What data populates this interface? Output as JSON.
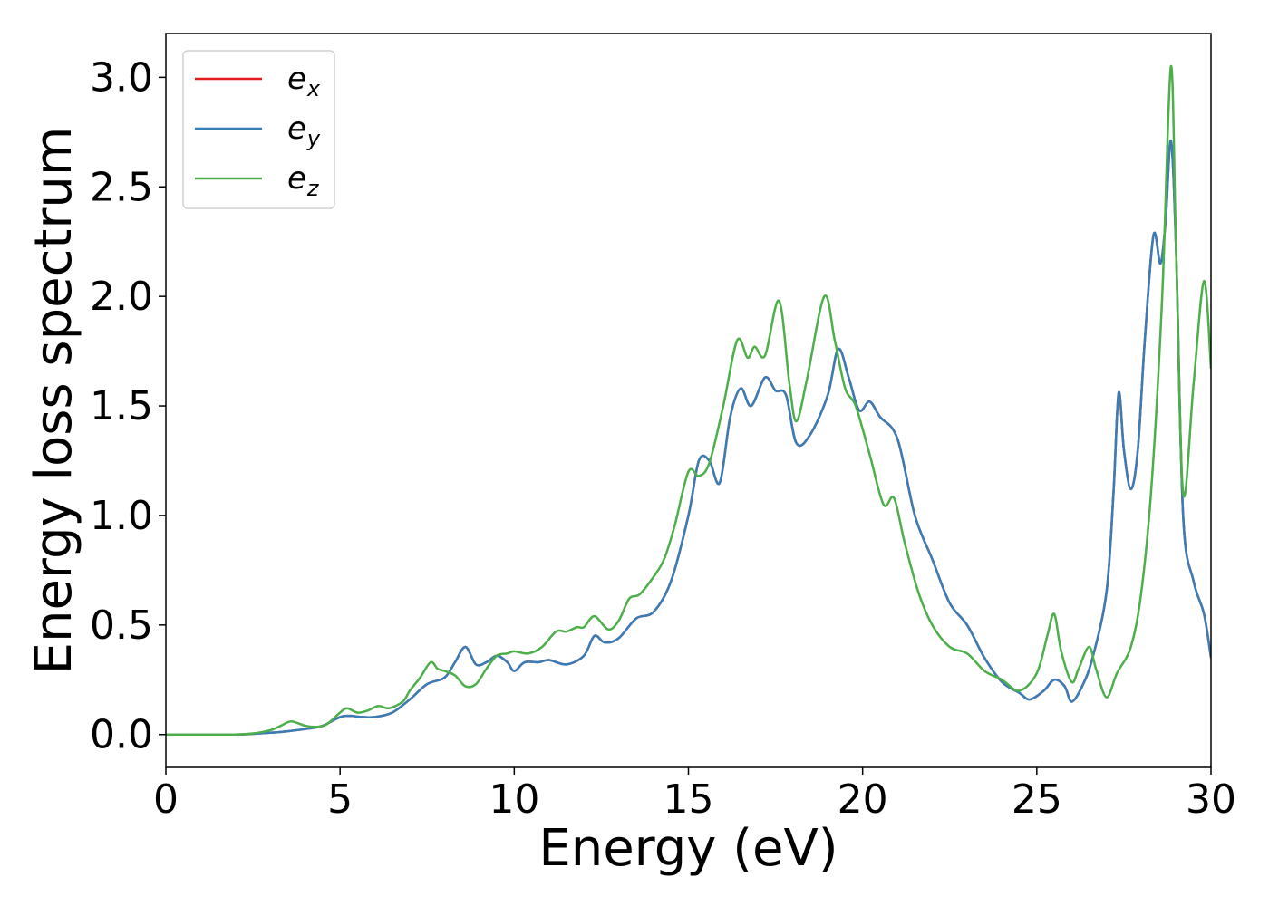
{
  "chart_data": {
    "type": "line",
    "xlabel": "Energy (eV)",
    "ylabel": "Energy loss spectrum",
    "xlim": [
      0,
      30
    ],
    "ylim": [
      -0.15,
      3.2
    ],
    "xticks": [
      "0",
      "5",
      "10",
      "15",
      "20",
      "25",
      "30"
    ],
    "yticks": [
      "0.0",
      "0.5",
      "1.0",
      "1.5",
      "2.0",
      "2.5",
      "3.0"
    ],
    "grid": false,
    "legend_position": "top-left",
    "series": [
      {
        "name": "e_x",
        "label_base": "e",
        "label_sub": "x",
        "color": "#e41a1c",
        "x": [
          0,
          1,
          2,
          2.5,
          3,
          3.5,
          4,
          4.5,
          5,
          5.3,
          5.6,
          6,
          6.5,
          7,
          7.5,
          8,
          8.3,
          8.6,
          8.9,
          9.2,
          9.5,
          9.8,
          10,
          10.3,
          10.7,
          11,
          11.5,
          12,
          12.3,
          12.6,
          13,
          13.5,
          14,
          14.5,
          15,
          15.3,
          15.6,
          15.9,
          16.2,
          16.5,
          16.8,
          17.2,
          17.5,
          17.8,
          18.1,
          18.5,
          19,
          19.3,
          19.6,
          19.9,
          20.2,
          20.5,
          21,
          21.5,
          22,
          22.5,
          23,
          23.5,
          24,
          24.5,
          24.8,
          25.2,
          25.5,
          25.8,
          26,
          26.3,
          26.6,
          27,
          27.2,
          27.35,
          27.5,
          27.7,
          27.9,
          28.1,
          28.35,
          28.55,
          28.7,
          28.85,
          29,
          29.2,
          29.5,
          29.8,
          30
        ],
        "y": [
          0,
          0,
          0,
          0.003,
          0.008,
          0.015,
          0.025,
          0.04,
          0.08,
          0.085,
          0.08,
          0.08,
          0.1,
          0.16,
          0.23,
          0.26,
          0.33,
          0.4,
          0.32,
          0.33,
          0.36,
          0.33,
          0.29,
          0.33,
          0.33,
          0.34,
          0.32,
          0.36,
          0.45,
          0.42,
          0.44,
          0.53,
          0.56,
          0.7,
          1.0,
          1.25,
          1.25,
          1.15,
          1.45,
          1.58,
          1.5,
          1.63,
          1.57,
          1.55,
          1.33,
          1.37,
          1.55,
          1.76,
          1.63,
          1.48,
          1.52,
          1.45,
          1.35,
          1.0,
          0.8,
          0.6,
          0.5,
          0.35,
          0.24,
          0.19,
          0.16,
          0.2,
          0.25,
          0.22,
          0.15,
          0.22,
          0.35,
          0.65,
          1.1,
          1.56,
          1.3,
          1.12,
          1.3,
          1.8,
          2.28,
          2.15,
          2.35,
          2.71,
          2.2,
          1.0,
          0.7,
          0.55,
          0.35
        ]
      },
      {
        "name": "e_y",
        "label_base": "e",
        "label_sub": "y",
        "color": "#377eb8",
        "x": [
          0,
          1,
          2,
          2.5,
          3,
          3.5,
          4,
          4.5,
          5,
          5.3,
          5.6,
          6,
          6.5,
          7,
          7.5,
          8,
          8.3,
          8.6,
          8.9,
          9.2,
          9.5,
          9.8,
          10,
          10.3,
          10.7,
          11,
          11.5,
          12,
          12.3,
          12.6,
          13,
          13.5,
          14,
          14.5,
          15,
          15.3,
          15.6,
          15.9,
          16.2,
          16.5,
          16.8,
          17.2,
          17.5,
          17.8,
          18.1,
          18.5,
          19,
          19.3,
          19.6,
          19.9,
          20.2,
          20.5,
          21,
          21.5,
          22,
          22.5,
          23,
          23.5,
          24,
          24.5,
          24.8,
          25.2,
          25.5,
          25.8,
          26,
          26.3,
          26.6,
          27,
          27.2,
          27.35,
          27.5,
          27.7,
          27.9,
          28.1,
          28.35,
          28.55,
          28.7,
          28.85,
          29,
          29.2,
          29.5,
          29.8,
          30
        ],
        "y": [
          0,
          0,
          0,
          0.003,
          0.008,
          0.015,
          0.025,
          0.04,
          0.08,
          0.085,
          0.08,
          0.08,
          0.1,
          0.16,
          0.23,
          0.26,
          0.33,
          0.4,
          0.32,
          0.33,
          0.36,
          0.33,
          0.29,
          0.33,
          0.33,
          0.34,
          0.32,
          0.36,
          0.45,
          0.42,
          0.44,
          0.53,
          0.56,
          0.7,
          1.0,
          1.25,
          1.25,
          1.15,
          1.45,
          1.58,
          1.5,
          1.63,
          1.57,
          1.55,
          1.33,
          1.37,
          1.55,
          1.76,
          1.63,
          1.48,
          1.52,
          1.45,
          1.35,
          1.0,
          0.8,
          0.6,
          0.5,
          0.35,
          0.24,
          0.19,
          0.16,
          0.2,
          0.25,
          0.22,
          0.15,
          0.22,
          0.35,
          0.65,
          1.1,
          1.56,
          1.3,
          1.12,
          1.3,
          1.8,
          2.28,
          2.15,
          2.35,
          2.71,
          2.2,
          1.0,
          0.7,
          0.55,
          0.35
        ]
      },
      {
        "name": "e_z",
        "label_base": "e",
        "label_sub": "z",
        "color": "#4daf4a",
        "x": [
          0,
          1,
          2,
          2.5,
          3,
          3.3,
          3.6,
          4,
          4.3,
          4.6,
          5,
          5.2,
          5.5,
          5.8,
          6.1,
          6.4,
          6.8,
          7,
          7.3,
          7.6,
          7.8,
          8,
          8.3,
          8.6,
          8.9,
          9.2,
          9.5,
          9.8,
          10,
          10.4,
          10.8,
          11.2,
          11.5,
          11.8,
          12,
          12.3,
          12.7,
          13,
          13.3,
          13.6,
          14,
          14.3,
          14.6,
          15,
          15.3,
          15.6,
          16,
          16.4,
          16.7,
          16.9,
          17.2,
          17.6,
          17.9,
          18.1,
          18.4,
          18.9,
          19.2,
          19.5,
          19.8,
          20.2,
          20.6,
          20.9,
          21.2,
          21.6,
          22,
          22.5,
          23,
          23.5,
          24,
          24.5,
          25,
          25.3,
          25.5,
          25.7,
          26,
          26.2,
          26.5,
          26.7,
          27,
          27.3,
          27.7,
          28,
          28.3,
          28.6,
          28.85,
          29,
          29.2,
          29.5,
          29.8,
          30
        ],
        "y": [
          0,
          0,
          0,
          0.005,
          0.02,
          0.04,
          0.06,
          0.04,
          0.035,
          0.045,
          0.1,
          0.12,
          0.1,
          0.11,
          0.13,
          0.12,
          0.15,
          0.2,
          0.26,
          0.33,
          0.3,
          0.29,
          0.27,
          0.22,
          0.23,
          0.3,
          0.36,
          0.37,
          0.38,
          0.37,
          0.4,
          0.47,
          0.47,
          0.49,
          0.49,
          0.54,
          0.48,
          0.52,
          0.62,
          0.64,
          0.72,
          0.8,
          0.95,
          1.2,
          1.18,
          1.24,
          1.5,
          1.8,
          1.72,
          1.77,
          1.73,
          1.98,
          1.6,
          1.43,
          1.62,
          2.0,
          1.8,
          1.58,
          1.5,
          1.28,
          1.05,
          1.08,
          0.88,
          0.65,
          0.5,
          0.4,
          0.37,
          0.29,
          0.25,
          0.2,
          0.28,
          0.45,
          0.55,
          0.38,
          0.24,
          0.3,
          0.4,
          0.3,
          0.17,
          0.28,
          0.4,
          0.65,
          1.15,
          2.0,
          3.05,
          2.2,
          1.1,
          1.6,
          2.07,
          1.67
        ]
      }
    ]
  }
}
